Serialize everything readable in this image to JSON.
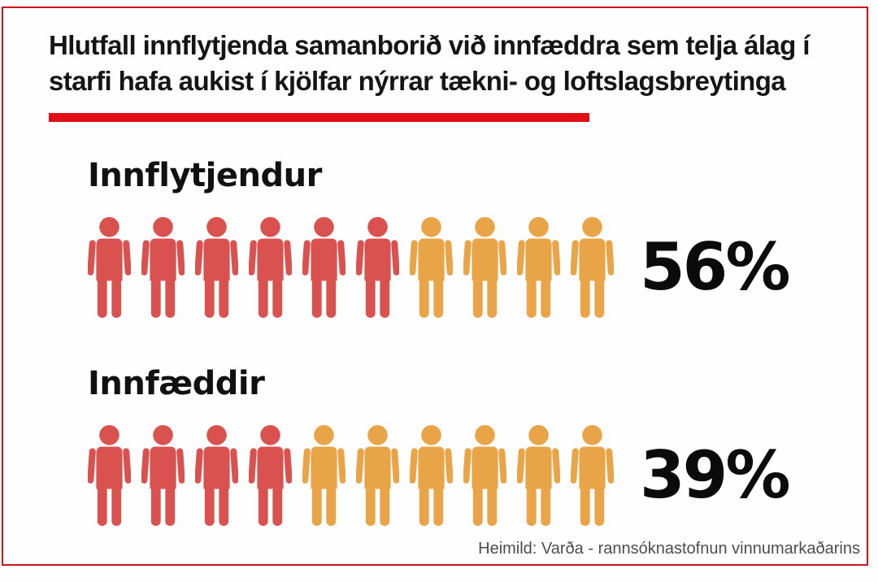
{
  "header": {
    "title_line1": "Hlutfall innflytjenda samanborið við innfæddra sem telja álag í",
    "title_line2": "starfi hafa aukist í kjölfar nýrrar tækni- og loftslagsbreytinga"
  },
  "footer": {
    "source": "Heimild: Varða - rannsóknastofnun vinnumarkaðarins"
  },
  "colors": {
    "background": "#fefefe",
    "frame_border_red": "#c8151c",
    "accent_bar_red": "#e10f15",
    "title_text": "#151515",
    "icon_highlight_red": "#d95250",
    "icon_base_orange": "#e9a447",
    "source_text": "#4d4d4d"
  },
  "chart_data": {
    "type": "pictogram",
    "title": "Hlutfall innflytjenda samanborið við innfæddra sem telja álag í starfi hafa aukist í kjölfar nýrrar tækni- og loftslagsbreytinga",
    "categories": [
      "Innflytjendur",
      "Innfæddir"
    ],
    "values": [
      56,
      39
    ],
    "icons_per_row": 10,
    "rows": [
      {
        "label": "Innflytjendur",
        "value": 56,
        "value_label": "56%",
        "filled_icons": 6,
        "total_icons": 10
      },
      {
        "label": "Innfæddir",
        "value": 39,
        "value_label": "39%",
        "filled_icons": 4,
        "total_icons": 10
      }
    ],
    "source": "Heimild: Varða - rannsóknastofnun vinnumarkaðarins"
  }
}
